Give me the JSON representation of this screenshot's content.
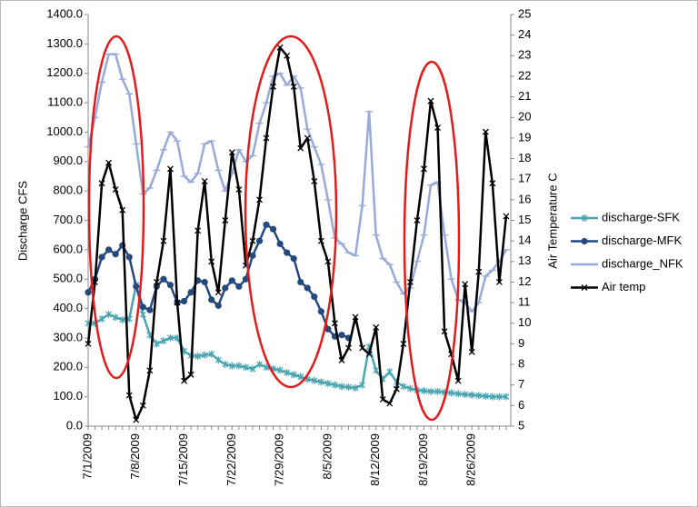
{
  "chart_data": {
    "type": "line",
    "y_label": "Discharge CFS",
    "y2_label": "Air Temperature C",
    "categories": [
      "7/1/2009",
      null,
      null,
      null,
      null,
      null,
      null,
      "7/8/2009",
      null,
      null,
      null,
      null,
      null,
      null,
      "7/15/2009",
      null,
      null,
      null,
      null,
      null,
      null,
      "7/22/2009",
      null,
      null,
      null,
      null,
      null,
      null,
      "7/29/2009",
      null,
      null,
      null,
      null,
      null,
      null,
      "8/5/2009",
      null,
      null,
      null,
      null,
      null,
      null,
      "8/12/2009",
      null,
      null,
      null,
      null,
      null,
      null,
      "8/19/2009",
      null,
      null,
      null,
      null,
      null,
      null,
      "8/26/2009",
      null,
      null,
      null,
      null,
      null
    ],
    "ylim": [
      0,
      1400
    ],
    "yticks": [
      {
        "value": 0,
        "label": "0.0"
      },
      {
        "value": 100,
        "label": "100.0"
      },
      {
        "value": 200,
        "label": "200.0"
      },
      {
        "value": 300,
        "label": "300.0"
      },
      {
        "value": 400,
        "label": "400.0"
      },
      {
        "value": 500,
        "label": "500.0"
      },
      {
        "value": 600,
        "label": "600.0"
      },
      {
        "value": 700,
        "label": "700.0"
      },
      {
        "value": 800,
        "label": "800.0"
      },
      {
        "value": 900,
        "label": "900.0"
      },
      {
        "value": 1000,
        "label": "1000.0"
      },
      {
        "value": 1100,
        "label": "1100.0"
      },
      {
        "value": 1200,
        "label": "1200.0"
      },
      {
        "value": 1300,
        "label": "1300.0"
      },
      {
        "value": 1400,
        "label": "1400.0"
      }
    ],
    "y2lim": [
      5,
      25
    ],
    "y2ticks": [
      5,
      6,
      7,
      8,
      9,
      10,
      11,
      12,
      13,
      14,
      15,
      16,
      17,
      18,
      19,
      20,
      21,
      22,
      23,
      24,
      25
    ],
    "legend": "right",
    "series": [
      {
        "name": "discharge-SFK",
        "color": "#4aa5b3",
        "marker": "asterisk",
        "values": [
          350,
          350,
          365,
          380,
          370,
          362,
          365,
          480,
          380,
          310,
          280,
          290,
          300,
          300,
          255,
          240,
          238,
          242,
          245,
          225,
          210,
          205,
          205,
          200,
          195,
          210,
          200,
          195,
          190,
          182,
          175,
          168,
          160,
          155,
          150,
          145,
          140,
          135,
          133,
          130,
          140,
          270,
          190,
          160,
          185,
          150,
          135,
          128,
          122,
          120,
          118,
          118,
          115,
          113,
          110,
          108,
          106,
          104,
          102,
          100,
          100,
          100
        ]
      },
      {
        "name": "discharge-MFK",
        "color": "#24497f",
        "marker": "circle",
        "values": [
          455,
          500,
          575,
          600,
          585,
          615,
          575,
          475,
          405,
          395,
          475,
          500,
          480,
          420,
          425,
          455,
          495,
          490,
          430,
          410,
          470,
          495,
          475,
          500,
          580,
          630,
          685,
          670,
          620,
          590,
          570,
          490,
          470,
          440,
          390,
          330,
          305,
          310,
          300,
          null,
          null,
          null,
          null,
          null,
          null,
          null,
          null,
          null,
          null,
          null,
          null,
          null,
          null,
          null,
          null,
          null,
          null,
          null,
          null,
          null,
          null,
          null
        ]
      },
      {
        "name": "discharge_NFK",
        "color": "#97aad8",
        "marker": "dash",
        "values": [
          950,
          1050,
          1170,
          1265,
          1265,
          1180,
          1130,
          960,
          790,
          810,
          870,
          940,
          1000,
          970,
          850,
          830,
          860,
          960,
          970,
          870,
          800,
          860,
          940,
          900,
          920,
          1030,
          1100,
          1190,
          1200,
          1160,
          1190,
          1150,
          1010,
          950,
          890,
          770,
          640,
          620,
          590,
          580,
          750,
          1070,
          650,
          570,
          550,
          490,
          450,
          470,
          560,
          650,
          820,
          830,
          650,
          500,
          430,
          420,
          390,
          420,
          510,
          530,
          560,
          600
        ]
      },
      {
        "name": "Air temp",
        "color": "#000000",
        "marker": "cross",
        "axis": "y2",
        "values": [
          9,
          12,
          16.8,
          17.8,
          16.5,
          15.5,
          6.5,
          5.3,
          6,
          7.7,
          12,
          14,
          17.5,
          11,
          7.2,
          7.5,
          14.5,
          16.9,
          13,
          11.5,
          15,
          18.3,
          16.5,
          12.8,
          14,
          16,
          19,
          21.5,
          23.4,
          23,
          21.5,
          18.5,
          19,
          16.9,
          14,
          13,
          10,
          8.2,
          8.8,
          10.3,
          8.8,
          8.5,
          9.8,
          6.3,
          6.1,
          6.8,
          9,
          12,
          15,
          17.5,
          20.8,
          19.5,
          9.6,
          8.5,
          7.2,
          11.9,
          8.6,
          12.5,
          19.3,
          16.8,
          12,
          15.2
        ]
      }
    ]
  }
}
